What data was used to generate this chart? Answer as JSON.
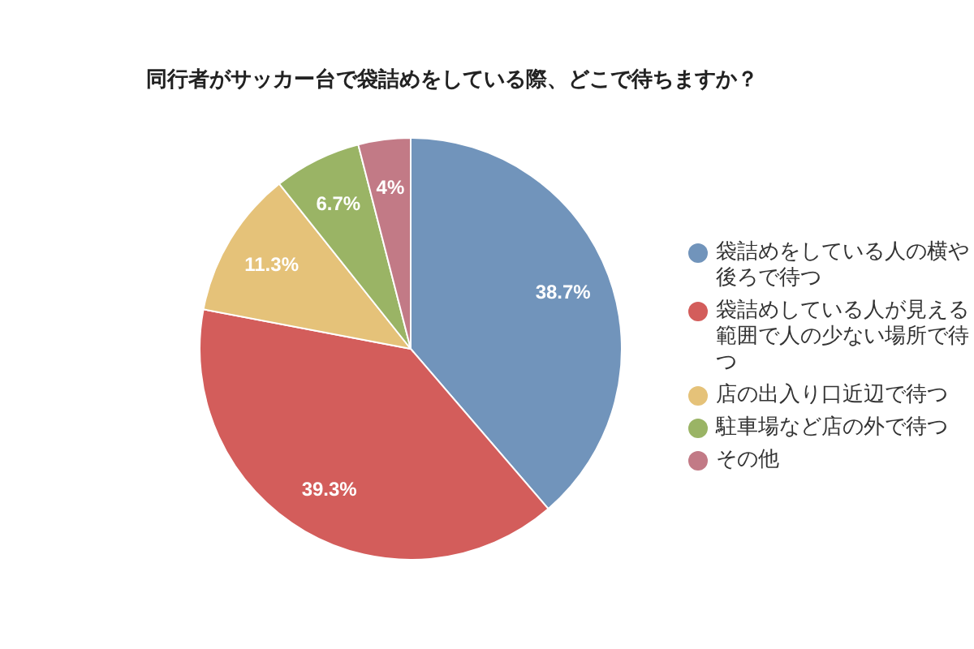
{
  "chart_data": {
    "type": "pie",
    "title": "同行者がサッカー台で袋詰めをしている際、どこで待ちますか？",
    "categories": [
      "袋詰めをしている人の横や後ろで待つ",
      "袋詰めしている人が見える範囲で人の少ない場所で待つ",
      "店の出入り口近辺で待つ",
      "駐車場など店の外で待つ",
      "その他"
    ],
    "values": [
      38.7,
      39.3,
      11.3,
      6.7,
      4
    ],
    "colors": [
      "#7194bb",
      "#d35d5b",
      "#e5c279",
      "#9ab465",
      "#c27a86"
    ],
    "value_labels": [
      "38.7%",
      "39.3%",
      "11.3%",
      "6.7%",
      "4%"
    ],
    "legend": "right"
  }
}
